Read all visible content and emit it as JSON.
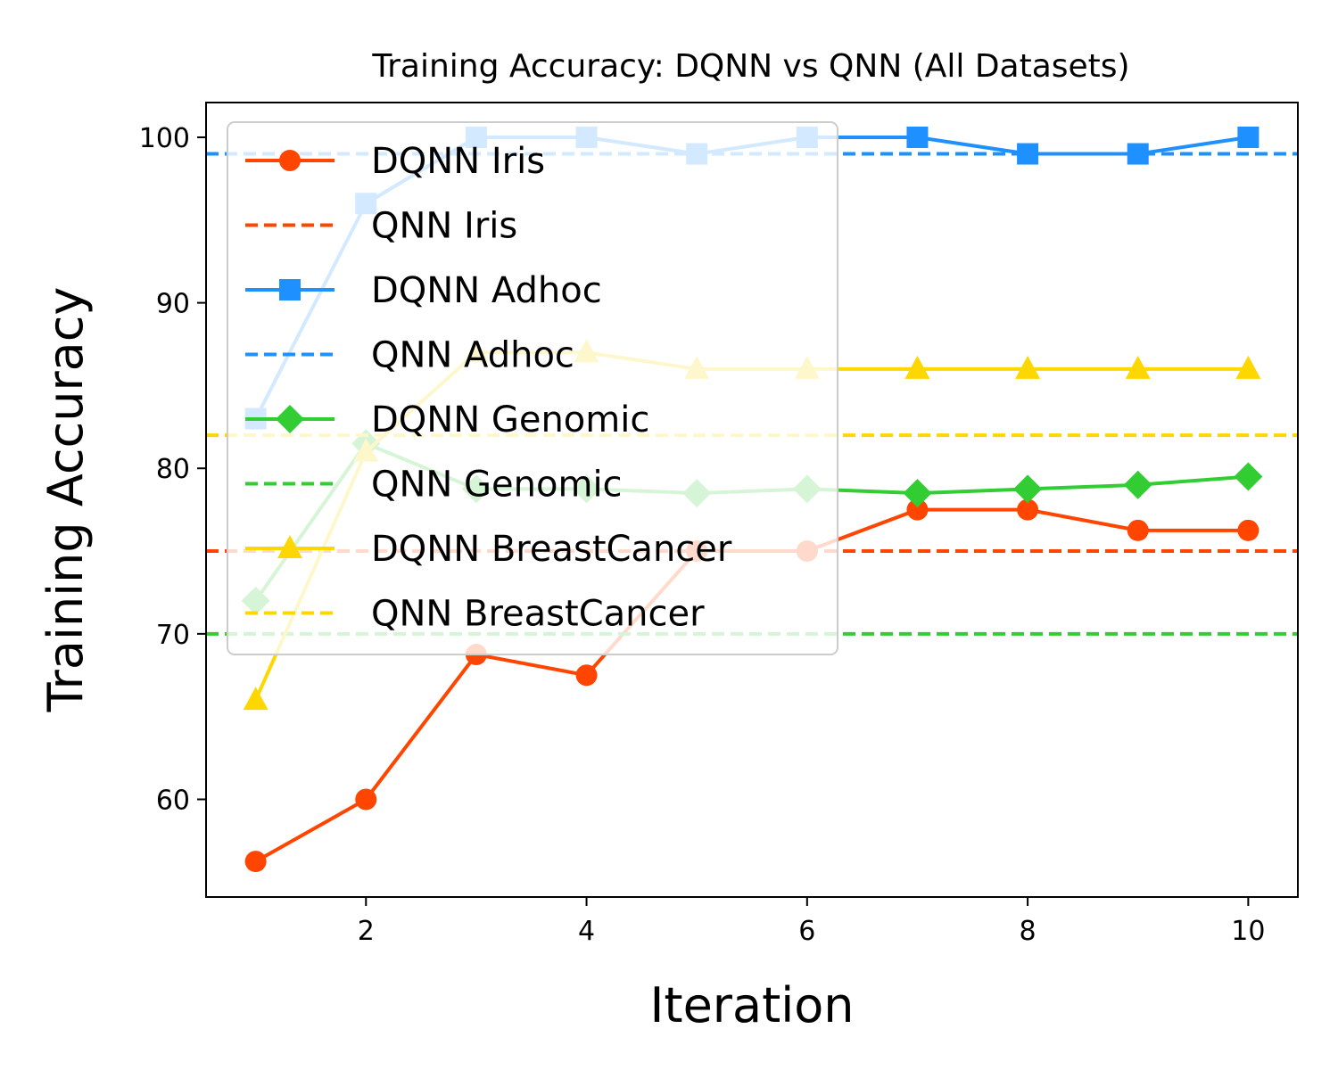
{
  "chart_data": {
    "type": "line",
    "title": "Training Accuracy: DQNN vs QNN (All Datasets)",
    "xlabel": "Iteration",
    "ylabel": "Training Accuracy",
    "xlim": [
      0.55,
      10.45
    ],
    "ylim": [
      54.1,
      102.1
    ],
    "xticks": [
      2,
      4,
      6,
      8,
      10
    ],
    "yticks": [
      60,
      70,
      80,
      90,
      100
    ],
    "grid": false,
    "legend_position": "upper-left",
    "x": [
      1,
      2,
      3,
      4,
      5,
      6,
      7,
      8,
      9,
      10
    ],
    "series": [
      {
        "name": "DQNN Iris",
        "style": "solid",
        "marker": "circle",
        "color": "#FF4500",
        "values": [
          56.25,
          60.0,
          68.75,
          67.5,
          75.0,
          75.0,
          77.5,
          77.5,
          76.25,
          76.25
        ]
      },
      {
        "name": "QNN Iris",
        "style": "dashed",
        "color": "#FF4500",
        "value": 75
      },
      {
        "name": "DQNN Adhoc",
        "style": "solid",
        "marker": "square",
        "color": "#1E90FF",
        "values": [
          83.0,
          96.0,
          100.0,
          100.0,
          99.0,
          100.0,
          100.0,
          99.0,
          99.0,
          100.0
        ]
      },
      {
        "name": "QNN Adhoc",
        "style": "dashed",
        "color": "#1E90FF",
        "value": 99
      },
      {
        "name": "DQNN Genomic",
        "style": "solid",
        "marker": "diamond",
        "color": "#32CD32",
        "values": [
          72.0,
          81.5,
          78.75,
          78.75,
          78.5,
          78.75,
          78.5,
          78.75,
          79.0,
          79.5
        ]
      },
      {
        "name": "QNN Genomic",
        "style": "dashed",
        "color": "#32CD32",
        "value": 70
      },
      {
        "name": "DQNN BreastCancer",
        "style": "solid",
        "marker": "triangle",
        "color": "#FFD700",
        "values": [
          66.0,
          81.0,
          87.0,
          87.0,
          86.0,
          86.0,
          86.0,
          86.0,
          86.0,
          86.0
        ]
      },
      {
        "name": "QNN BreastCancer",
        "style": "dashed",
        "color": "#FFD700",
        "value": 82
      }
    ]
  }
}
